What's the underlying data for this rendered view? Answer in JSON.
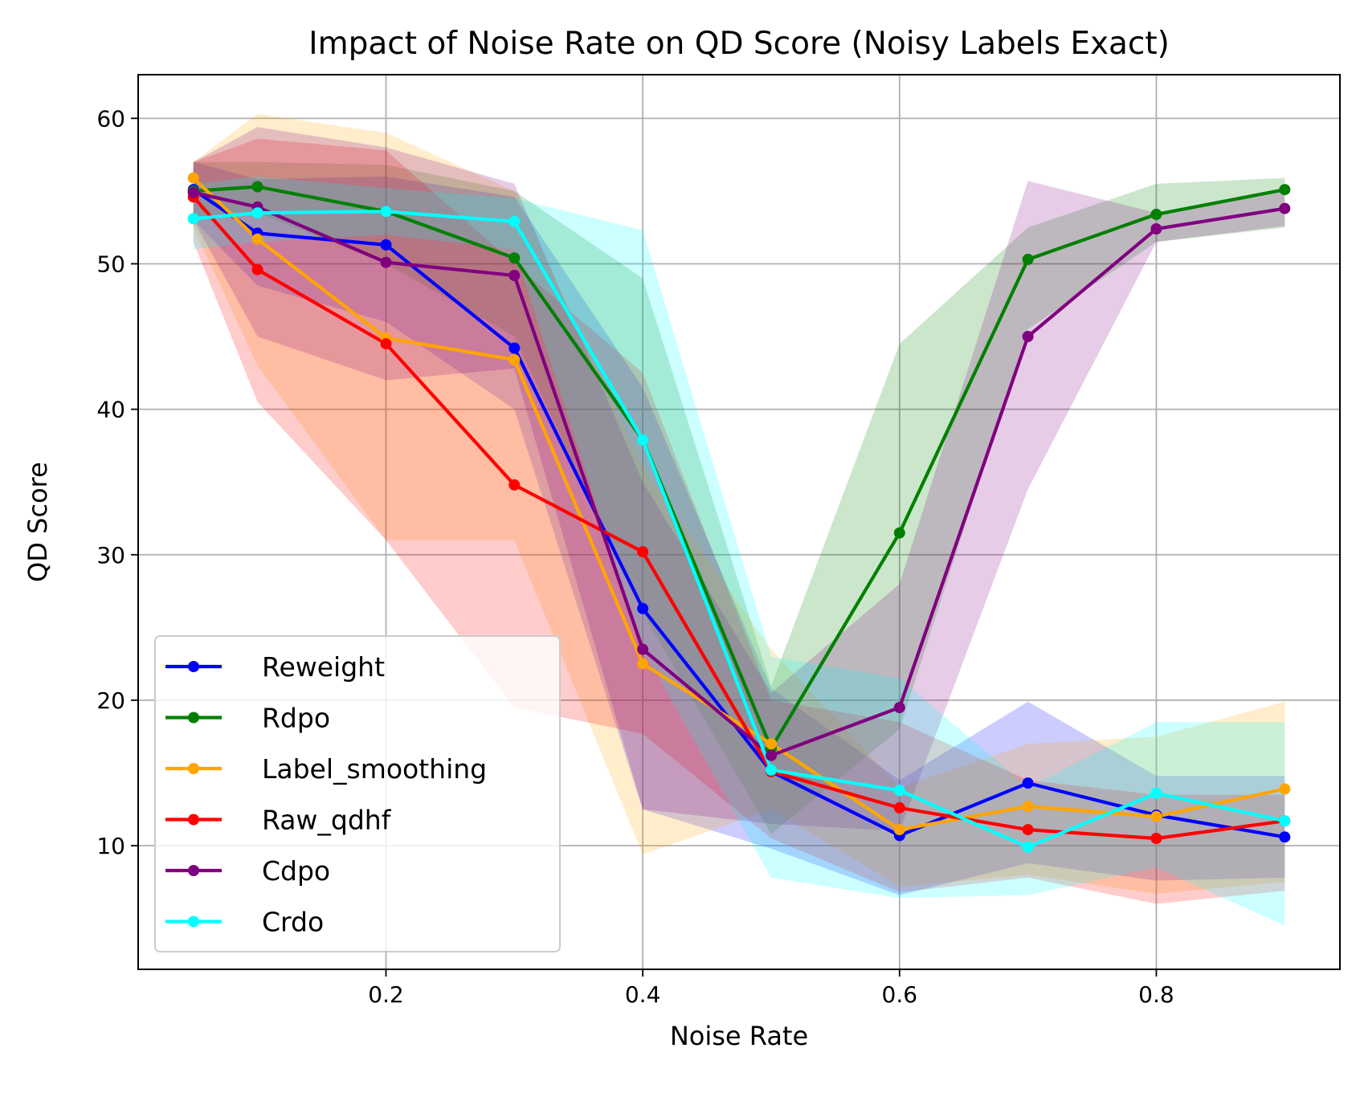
{
  "chart_data": {
    "type": "line",
    "title": "Impact of Noise Rate on QD Score (Noisy Labels Exact)",
    "xlabel": "Noise Rate",
    "ylabel": "QD Score",
    "xlim": [
      0.007,
      0.943
    ],
    "ylim": [
      1.5,
      63.0
    ],
    "xticks": [
      0.2,
      0.4,
      0.6,
      0.8
    ],
    "xtick_labels": [
      "0.2",
      "0.4",
      "0.6",
      "0.8"
    ],
    "yticks": [
      10,
      20,
      30,
      40,
      50,
      60
    ],
    "ytick_labels": [
      "10",
      "20",
      "30",
      "40",
      "50",
      "60"
    ],
    "grid": true,
    "legend_position": "lower-left",
    "x": [
      0.05,
      0.1,
      0.2,
      0.3,
      0.4,
      0.5,
      0.6,
      0.7,
      0.8,
      0.9
    ],
    "series": [
      {
        "name": "Reweight",
        "color": "#0000ff",
        "values": [
          55.1,
          52.1,
          51.3,
          44.2,
          26.3,
          15.1,
          10.7,
          14.3,
          12.1,
          10.6
        ],
        "lower": [
          53.0,
          48.5,
          46.0,
          40.0,
          12.5,
          9.8,
          6.6,
          8.8,
          7.6,
          7.8
        ],
        "upper": [
          57.0,
          55.8,
          56.0,
          54.6,
          41.5,
          20.8,
          14.5,
          19.9,
          14.8,
          14.8
        ]
      },
      {
        "name": "Rdpo",
        "color": "#008000",
        "values": [
          55.0,
          55.3,
          53.6,
          50.4,
          37.9,
          16.7,
          31.5,
          50.3,
          53.4,
          55.1
        ],
        "lower": [
          53.0,
          53.5,
          50.0,
          45.0,
          26.0,
          10.8,
          18.0,
          45.5,
          51.5,
          52.5
        ],
        "upper": [
          57.0,
          57.0,
          56.8,
          55.0,
          49.0,
          21.0,
          44.5,
          52.5,
          55.5,
          55.9
        ]
      },
      {
        "name": "Label_smoothing",
        "color": "#ffa500",
        "values": [
          55.9,
          51.7,
          44.9,
          43.4,
          22.5,
          17.0,
          11.1,
          12.7,
          12.0,
          13.9
        ],
        "lower": [
          52.5,
          43.0,
          31.0,
          31.0,
          9.4,
          12.5,
          7.2,
          8.0,
          6.7,
          7.5
        ],
        "upper": [
          57.0,
          60.3,
          59.0,
          55.0,
          36.0,
          23.5,
          14.0,
          17.0,
          17.5,
          19.9
        ]
      },
      {
        "name": "Raw_qdhf",
        "color": "#ff0000",
        "values": [
          54.6,
          49.6,
          44.5,
          34.8,
          30.2,
          15.1,
          12.6,
          11.1,
          10.5,
          11.7
        ],
        "lower": [
          51.5,
          40.5,
          31.0,
          19.5,
          17.7,
          10.5,
          6.8,
          7.8,
          6.0,
          6.9
        ],
        "upper": [
          57.0,
          58.6,
          57.8,
          50.0,
          42.5,
          20.0,
          18.5,
          14.5,
          13.5,
          13.5
        ]
      },
      {
        "name": "Cdpo",
        "color": "#800080",
        "values": [
          54.9,
          53.9,
          50.1,
          49.2,
          23.5,
          16.2,
          19.5,
          45.0,
          52.4,
          53.8
        ],
        "lower": [
          53.0,
          45.0,
          42.0,
          42.8,
          12.5,
          11.5,
          11.0,
          34.5,
          51.5,
          52.6
        ],
        "upper": [
          57.0,
          59.4,
          58.0,
          55.5,
          35.0,
          20.5,
          28.0,
          55.7,
          53.5,
          55.0
        ]
      },
      {
        "name": "Crdo",
        "color": "#00ffff",
        "values": [
          53.1,
          53.5,
          53.6,
          52.9,
          37.9,
          15.2,
          13.8,
          9.9,
          13.6,
          11.7
        ],
        "lower": [
          51.0,
          51.5,
          52.0,
          51.0,
          23.5,
          7.8,
          6.4,
          6.6,
          8.5,
          4.5
        ],
        "upper": [
          55.5,
          56.0,
          55.2,
          54.5,
          52.3,
          23.0,
          21.5,
          14.0,
          18.5,
          18.5
        ]
      }
    ]
  }
}
